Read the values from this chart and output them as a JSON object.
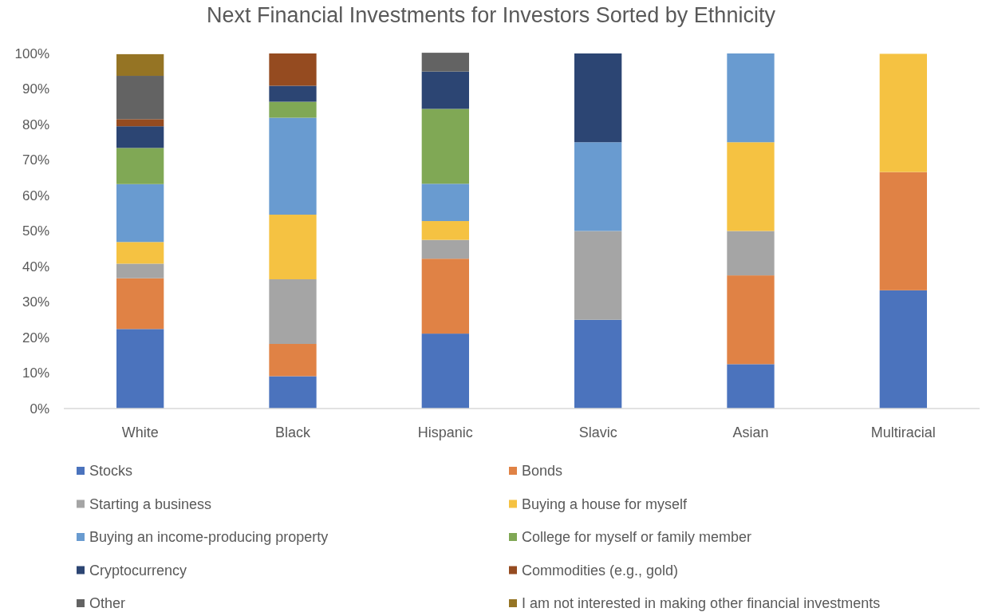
{
  "chart_data": {
    "type": "bar",
    "title": "Next Financial Investments for Investors Sorted by Ethnicity",
    "stacked": true,
    "categories": [
      "White",
      "Black",
      "Hispanic",
      "Slavic",
      "Asian",
      "Multiracial"
    ],
    "series": [
      {
        "name": "Stocks",
        "color": "#4b73bd",
        "values": [
          22.4,
          9.1,
          21.1,
          25,
          12.5,
          33.3
        ]
      },
      {
        "name": "Bonds",
        "color": "#e08245",
        "values": [
          14.3,
          9.1,
          21.1,
          0,
          25,
          33.3
        ]
      },
      {
        "name": "Starting a business",
        "color": "#a5a5a5",
        "values": [
          4.1,
          18.2,
          5.3,
          25,
          12.5,
          0
        ]
      },
      {
        "name": "Buying a house for myself",
        "color": "#f5c242",
        "values": [
          6.1,
          18.2,
          5.3,
          0,
          25,
          33.3
        ]
      },
      {
        "name": "Buying an income-producing property",
        "color": "#699bd0",
        "values": [
          16.3,
          27.3,
          10.5,
          25,
          25,
          0
        ]
      },
      {
        "name": "College for myself or family member",
        "color": "#80a855",
        "values": [
          10.2,
          4.5,
          21.1,
          0,
          0,
          0
        ]
      },
      {
        "name": "Cryptocurrency",
        "color": "#2c4573",
        "values": [
          6.1,
          4.5,
          10.5,
          25,
          0,
          0
        ]
      },
      {
        "name": "Commodities (e.g., gold)",
        "color": "#954b20",
        "values": [
          2.0,
          9.1,
          0,
          0,
          0,
          0
        ]
      },
      {
        "name": "Other",
        "color": "#636363",
        "values": [
          12.2,
          0,
          5.3,
          0,
          0,
          0
        ]
      },
      {
        "name": "I am not interested in making other financial investments",
        "color": "#957424",
        "values": [
          6.1,
          0,
          0,
          0,
          0,
          0
        ]
      }
    ],
    "ylim": [
      0,
      100
    ],
    "yticks": [
      {
        "value": 0,
        "label": "0%"
      },
      {
        "value": 10,
        "label": "10%"
      },
      {
        "value": 20,
        "label": "20%"
      },
      {
        "value": 30,
        "label": "30%"
      },
      {
        "value": 40,
        "label": "40%"
      },
      {
        "value": 50,
        "label": "50%"
      },
      {
        "value": 60,
        "label": "60%"
      },
      {
        "value": 70,
        "label": "70%"
      },
      {
        "value": 80,
        "label": "80%"
      },
      {
        "value": 90,
        "label": "90%"
      },
      {
        "value": 100,
        "label": "100%"
      }
    ],
    "legend": "bottom"
  }
}
